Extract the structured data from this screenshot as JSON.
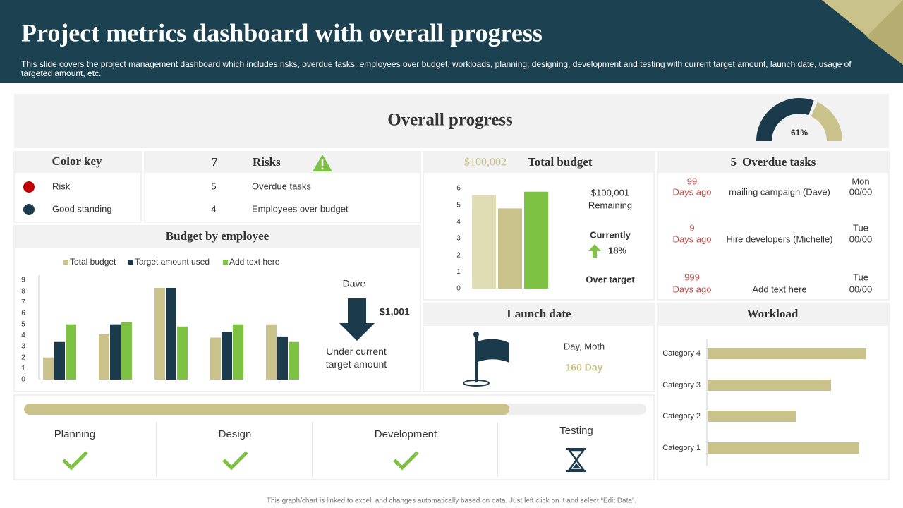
{
  "header": {
    "title": "Project metrics dashboard with overall progress",
    "subtitle": "This slide covers the project management dashboard which includes risks, overdue tasks, employees over budget, workloads, planning, designing, development and testing with current target amount, launch date, usage of targeted amount, etc."
  },
  "color_key": {
    "title": "Color key",
    "items": [
      "Risk",
      "Good standing"
    ],
    "colors": [
      "#c00000",
      "#1b3a4b"
    ]
  },
  "risks": {
    "rows": [
      {
        "count": 7,
        "label": "Risks"
      },
      {
        "count": 5,
        "label": "Overdue tasks"
      },
      {
        "count": 4,
        "label": "Employees over budget"
      }
    ]
  },
  "total_budget": {
    "amount": "$100,002",
    "remaining_amount": "$100,001",
    "remaining_label": "Remaining",
    "currently": "Currently",
    "percent": "18%",
    "over_target": "Over target"
  },
  "overdue_tasks": {
    "count": 5,
    "title": "Overdue tasks",
    "rows": [
      {
        "days": 99,
        "days_label": "Days ago",
        "task": "mailing campaign (Dave)",
        "day": "Mon",
        "date": "00/00"
      },
      {
        "days": 9,
        "days_label": "Days ago",
        "task": "Hire developers (Michelle)",
        "day": "Tue",
        "date": "00/00"
      },
      {
        "days": 999,
        "days_label": "Days ago",
        "task": "Add text here",
        "day": "Tue",
        "date": "00/00"
      }
    ]
  },
  "employee_note": {
    "name": "Dave",
    "amount": "$1,001",
    "note": "Under current target amount"
  },
  "launch_date": {
    "title": "Launch date",
    "label": "Day, Moth",
    "days": "160 Day"
  },
  "phases": [
    "Planning",
    "Design",
    "Development",
    "Testing"
  ],
  "footer": "This graph/chart is linked to excel, and changes automatically based on data. Just left click on it and select “Edit Data”.",
  "chart_data": [
    {
      "type": "gauge",
      "title": "Overall progress",
      "values": [
        61
      ],
      "value_labels": [
        "61%"
      ],
      "ylim": [
        0,
        100
      ],
      "colors": [
        "#1b3a4b",
        "#c9c28a"
      ]
    },
    {
      "type": "bar",
      "title": "Budget by employee",
      "categories": [
        null,
        null,
        null,
        null,
        null
      ],
      "series": [
        {
          "name": "Total budget",
          "color": "#c9c28a",
          "values": [
            2.0,
            4.1,
            8.3,
            3.8,
            5.0
          ]
        },
        {
          "name": "Target amount used",
          "color": "#1b3a4b",
          "values": [
            3.4,
            5.0,
            8.3,
            4.3,
            3.9
          ]
        },
        {
          "name": "Add text here",
          "color": "#7dc242",
          "values": [
            5.0,
            5.2,
            4.8,
            5.0,
            3.4
          ]
        }
      ],
      "ylim": [
        0,
        9
      ],
      "yticks": [
        0,
        1,
        2,
        3,
        4,
        5,
        6,
        7,
        8,
        9
      ]
    },
    {
      "type": "bar",
      "title": "Total budget",
      "categories": [
        null,
        null,
        null
      ],
      "values": [
        5.6,
        4.8,
        5.8
      ],
      "colors": [
        "#e0dcb4",
        "#c9c28a",
        "#7dc242"
      ],
      "ylim": [
        0,
        6
      ],
      "yticks": [
        0,
        1,
        2,
        3,
        4,
        5,
        6
      ]
    },
    {
      "type": "hbar",
      "title": "Workload",
      "categories": [
        "Category 1",
        "Category 2",
        "Category 3",
        "Category 4"
      ],
      "values": [
        4.3,
        2.5,
        3.5,
        4.5
      ],
      "color": "#c9c28a",
      "xlim": [
        0,
        5
      ]
    },
    {
      "type": "progress",
      "values": [
        78
      ],
      "ylim": [
        0,
        100
      ],
      "color": "#c9c28a",
      "track_color": "#eeeeee"
    }
  ]
}
